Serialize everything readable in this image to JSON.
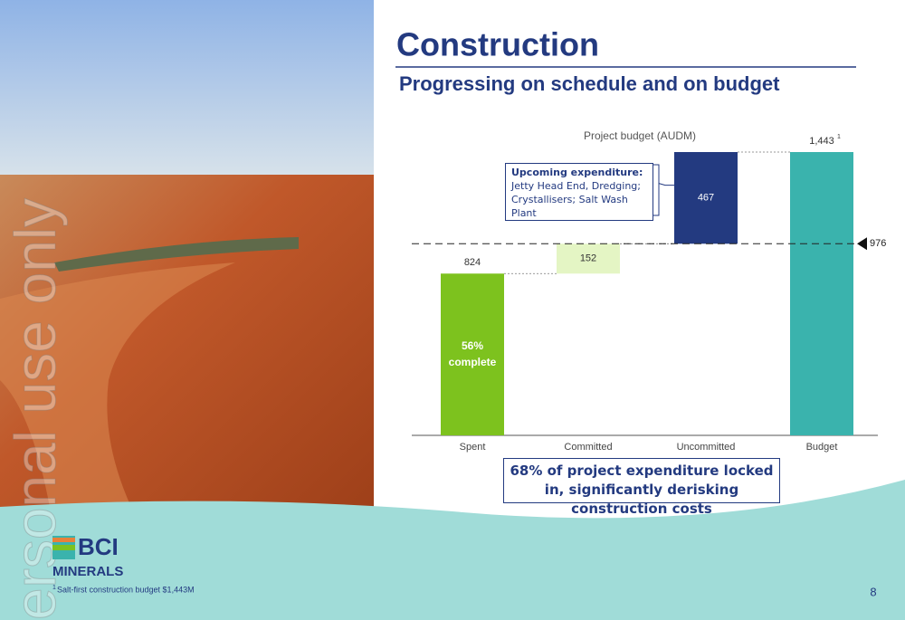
{
  "header": {
    "title": "Construction",
    "subtitle": "Progressing on schedule and on budget"
  },
  "watermark": "ersonal use only",
  "chart_data": {
    "type": "waterfall",
    "title": "Project budget (AUDM)",
    "categories": [
      "Spent",
      "Committed",
      "Uncommitted",
      "Budget"
    ],
    "values": [
      824,
      152,
      467,
      1443
    ],
    "value_labels": [
      "824",
      "152",
      "467",
      "1,443"
    ],
    "measure": [
      "relative",
      "relative",
      "relative",
      "total"
    ],
    "colors": [
      "#7dc21e",
      "#e4f5c4",
      "#233a80",
      "#3ab3ad"
    ],
    "value_label_colors": [
      "#333333",
      "#333333",
      "#ffffff",
      "#333333"
    ],
    "footnote_marker": "1",
    "reference_line": 976,
    "bar_annotation": [
      "56%",
      "complete"
    ],
    "callout": {
      "bold": "Upcoming expenditure:",
      "text": "Jetty Head End, Dredging; Crystallisers; Salt Wash Plant"
    }
  },
  "highlight": "68% of project expenditure locked in, significantly derisking construction costs",
  "logo": {
    "name": "BCI",
    "sub": "MINERALS"
  },
  "footnote": {
    "marker": "1",
    "text": "Salt-first construction budget $1,443M"
  },
  "page_number": "8"
}
